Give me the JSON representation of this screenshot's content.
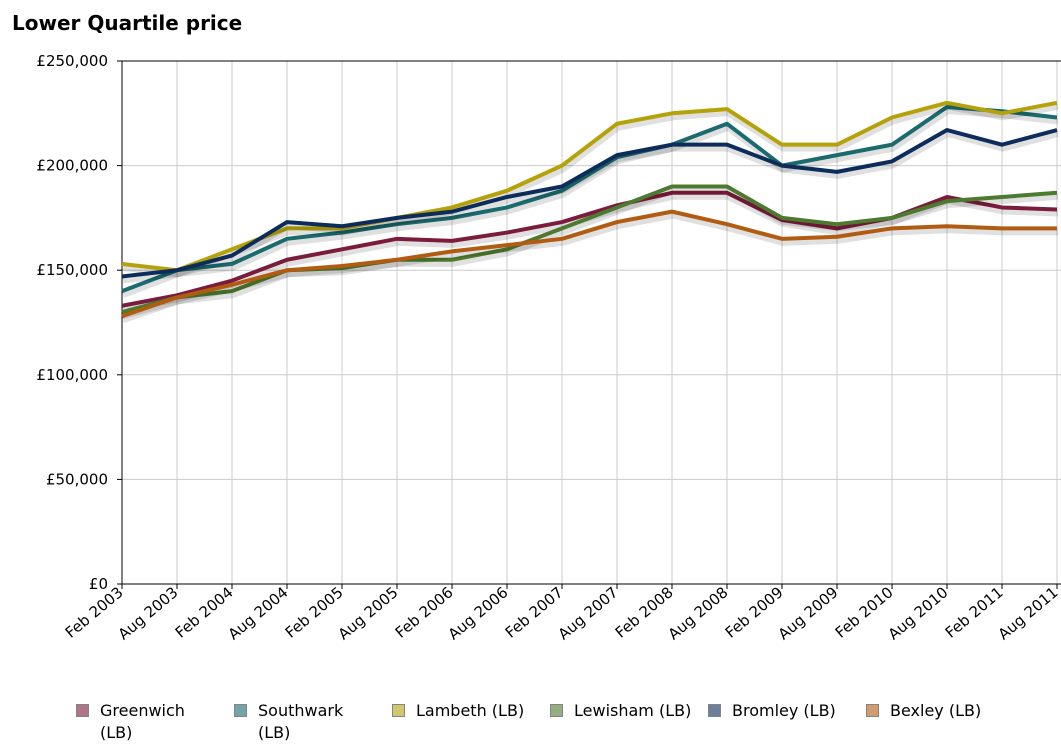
{
  "chart_data": {
    "type": "line",
    "title": "Lower Quartile price",
    "categories": [
      "Feb 2003",
      "Aug 2003",
      "Feb 2004",
      "Aug 2004",
      "Feb 2005",
      "Aug 2005",
      "Feb 2006",
      "Aug 2006",
      "Feb 2007",
      "Aug 2007",
      "Feb 2008",
      "Aug 2008",
      "Feb 2009",
      "Aug 2009",
      "Feb 2010",
      "Aug 2010",
      "Feb 2011",
      "Aug 2011"
    ],
    "series": [
      {
        "name": "Greenwich (LB)",
        "color": "#7b1c3c",
        "values": [
          133000,
          138000,
          145000,
          155000,
          160000,
          165000,
          164000,
          168000,
          173000,
          181000,
          187000,
          187000,
          174000,
          170000,
          175000,
          185000,
          180000,
          179000
        ]
      },
      {
        "name": "Southwark (LB)",
        "color": "#1b6b6e",
        "values": [
          140000,
          150000,
          153000,
          165000,
          168000,
          172000,
          175000,
          180000,
          188000,
          204000,
          210000,
          220000,
          200000,
          205000,
          210000,
          228000,
          226000,
          223000
        ]
      },
      {
        "name": "Lambeth (LB)",
        "color": "#b5a20a",
        "values": [
          153000,
          150000,
          160000,
          170000,
          170000,
          175000,
          180000,
          188000,
          200000,
          220000,
          225000,
          227000,
          210000,
          210000,
          223000,
          230000,
          225000,
          230000
        ]
      },
      {
        "name": "Lewisham (LB)",
        "color": "#4c7a2e",
        "values": [
          130000,
          137000,
          140000,
          150000,
          151000,
          155000,
          155000,
          160000,
          170000,
          180000,
          190000,
          190000,
          175000,
          172000,
          175000,
          183000,
          185000,
          187000
        ]
      },
      {
        "name": "Bromley (LB)",
        "color": "#0c2d5c",
        "values": [
          147000,
          150000,
          157000,
          173000,
          171000,
          175000,
          178000,
          185000,
          190000,
          205000,
          210000,
          210000,
          200000,
          197000,
          202000,
          217000,
          210000,
          217000
        ]
      },
      {
        "name": "Bexley (LB)",
        "color": "#b25c12",
        "values": [
          128000,
          137000,
          143000,
          150000,
          152000,
          155000,
          159000,
          162000,
          165000,
          173000,
          178000,
          172000,
          165000,
          166000,
          170000,
          171000,
          170000,
          170000
        ]
      }
    ],
    "ylim": [
      0,
      250000
    ],
    "yticks": [
      {
        "value": 0,
        "label": "£0"
      },
      {
        "value": 50000,
        "label": "£50,000"
      },
      {
        "value": 100000,
        "label": "£100,000"
      },
      {
        "value": 150000,
        "label": "£150,000"
      },
      {
        "value": 200000,
        "label": "£200,000"
      },
      {
        "value": 250000,
        "label": "£250,000"
      }
    ],
    "grid": true
  }
}
